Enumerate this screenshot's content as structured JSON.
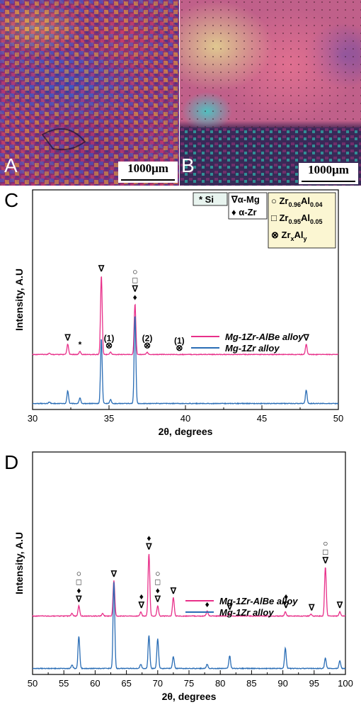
{
  "panels": {
    "a": {
      "letter": "A",
      "scale": "1000μm"
    },
    "b": {
      "letter": "B",
      "scale": "1000μm"
    }
  },
  "chart_data": [
    {
      "id": "C",
      "type": "line",
      "panel_letter": "C",
      "xlabel": "2θ, degrees",
      "ylabel": "Intensity, A.U",
      "xlim": [
        30,
        50
      ],
      "xticks": [
        30,
        35,
        40,
        45,
        50
      ],
      "grid": false,
      "legend_position": "center-right",
      "series": [
        {
          "name": "Mg-1Zr-AlBe alloy",
          "color": "#e8308a",
          "baseline": 0.62,
          "peaks": [
            [
              31.1,
              0.02
            ],
            [
              32.3,
              0.13
            ],
            [
              33.1,
              0.04
            ],
            [
              34.5,
              1.0
            ],
            [
              35.1,
              0.03
            ],
            [
              36.7,
              0.64
            ],
            [
              37.5,
              0.03
            ],
            [
              47.9,
              0.13
            ]
          ]
        },
        {
          "name": "Mg-1Zr alloy",
          "color": "#2a6db5",
          "baseline": 0.0,
          "peaks": [
            [
              31.1,
              0.02
            ],
            [
              32.3,
              0.16
            ],
            [
              33.1,
              0.07
            ],
            [
              34.5,
              0.82
            ],
            [
              35.1,
              0.05
            ],
            [
              36.7,
              1.12
            ],
            [
              47.9,
              0.17
            ]
          ]
        }
      ],
      "phase_legend": [
        {
          "symbol": "*",
          "label": "Si"
        },
        {
          "symbol": "∇",
          "label": "α-Mg"
        },
        {
          "symbol": "♦",
          "label": "α-Zr"
        },
        {
          "symbol": "○",
          "label": "Zr",
          "sub": "0.96",
          "label2": "Al",
          "sub2": "0.04"
        },
        {
          "symbol": "□",
          "label": "Zr",
          "sub": "0.95",
          "label2": "Al",
          "sub2": "0.05"
        },
        {
          "symbol": "⊗",
          "label": "Zr",
          "sub": "x",
          "label2": "Al",
          "sub2": "y"
        }
      ],
      "annotations": [
        {
          "x": 32.3,
          "marks": [
            "∇"
          ]
        },
        {
          "x": 33.1,
          "marks": [
            "*"
          ]
        },
        {
          "x": 34.5,
          "marks": [
            "∇"
          ]
        },
        {
          "x": 35.0,
          "marks": [
            "⊗"
          ],
          "label": "(1)"
        },
        {
          "x": 36.7,
          "marks": [
            "♦",
            "∇",
            "□",
            "○"
          ]
        },
        {
          "x": 37.5,
          "marks": [
            "⊗"
          ],
          "label": "(2)"
        },
        {
          "x": 39.6,
          "marks": [
            "⊗"
          ],
          "label": "(1)"
        },
        {
          "x": 47.9,
          "marks": [
            "∇"
          ]
        }
      ]
    },
    {
      "id": "D",
      "type": "line",
      "panel_letter": "D",
      "xlabel": "2θ, degrees",
      "ylabel": "Intensity, A.U",
      "xlim": [
        50,
        100
      ],
      "xticks": [
        50,
        55,
        60,
        65,
        70,
        75,
        80,
        85,
        90,
        95,
        100
      ],
      "grid": false,
      "legend_position": "center-right",
      "series": [
        {
          "name": "Mg-1Zr-AlBe alloy",
          "color": "#e8308a",
          "baseline": 0.62,
          "peaks": [
            [
              56.3,
              0.03
            ],
            [
              57.4,
              0.12
            ],
            [
              61.2,
              0.03
            ],
            [
              63.0,
              0.42
            ],
            [
              67.3,
              0.05
            ],
            [
              68.6,
              0.74
            ],
            [
              70.0,
              0.12
            ],
            [
              72.5,
              0.22
            ],
            [
              77.9,
              0.06
            ],
            [
              81.5,
              0.03
            ],
            [
              90.4,
              0.05
            ],
            [
              94.5,
              0.02
            ],
            [
              96.8,
              0.58
            ],
            [
              99.1,
              0.05
            ]
          ]
        },
        {
          "name": "Mg-1Zr alloy",
          "color": "#2a6db5",
          "baseline": 0.0,
          "peaks": [
            [
              56.3,
              0.04
            ],
            [
              57.4,
              0.38
            ],
            [
              63.0,
              1.02
            ],
            [
              67.3,
              0.05
            ],
            [
              68.6,
              0.39
            ],
            [
              70.0,
              0.35
            ],
            [
              72.5,
              0.14
            ],
            [
              77.9,
              0.05
            ],
            [
              81.5,
              0.15
            ],
            [
              90.4,
              0.24
            ],
            [
              96.8,
              0.12
            ],
            [
              99.1,
              0.09
            ]
          ]
        }
      ],
      "annotations": [
        {
          "x": 57.4,
          "marks": [
            "∇",
            "♦",
            "□",
            "○"
          ]
        },
        {
          "x": 63.0,
          "marks": [
            "∇"
          ]
        },
        {
          "x": 67.4,
          "marks": [
            "∇",
            "♦"
          ]
        },
        {
          "x": 68.6,
          "marks": [
            "∇",
            "♦"
          ]
        },
        {
          "x": 70.0,
          "marks": [
            "∇",
            "♦",
            "□",
            "○"
          ]
        },
        {
          "x": 72.5,
          "marks": [
            "∇"
          ]
        },
        {
          "x": 77.9,
          "marks": [
            "♦"
          ]
        },
        {
          "x": 81.5,
          "marks": [
            "∇"
          ]
        },
        {
          "x": 90.5,
          "marks": [
            "∇",
            "♦"
          ]
        },
        {
          "x": 94.6,
          "marks": [
            "∇"
          ]
        },
        {
          "x": 96.8,
          "marks": [
            "∇",
            "□",
            "○"
          ]
        },
        {
          "x": 99.1,
          "marks": [
            "∇"
          ]
        }
      ]
    }
  ]
}
